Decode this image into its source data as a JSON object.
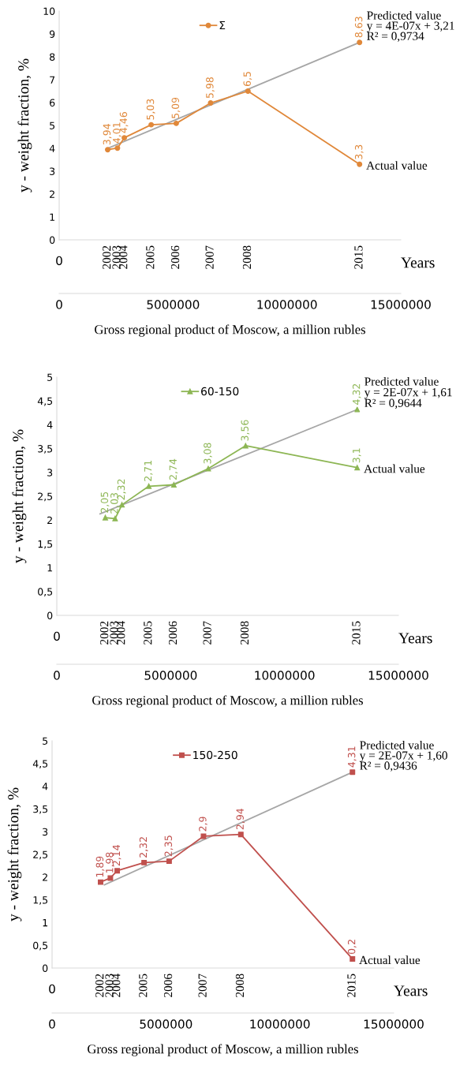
{
  "chart_data": [
    {
      "type": "line",
      "ylabel": "y - weight fraction, %",
      "xlabel": "Gross regional product of Moscow, a million rubles",
      "xlim": [
        0,
        15000000
      ],
      "xticks": [
        0,
        5000000,
        10000000,
        15000000
      ],
      "ylim": [
        0,
        10
      ],
      "yticks": [
        0,
        1,
        2,
        3,
        4,
        5,
        6,
        7,
        8,
        9,
        10
      ],
      "grid": false,
      "legend": "top",
      "series": [
        {
          "type": "line",
          "color": "#a6a6a6",
          "marker": "none",
          "x": [
            2130000,
            13190000
          ],
          "values": [
            4.0,
            8.63
          ]
        },
        {
          "name": "Σ",
          "color": "#e0883a",
          "marker": "circle",
          "x": [
            2130000,
            2560000,
            2860000,
            4040000,
            5140000,
            6650000,
            8290000,
            13190000
          ],
          "values": [
            3.94,
            4.01,
            4.46,
            5.03,
            5.09,
            5.98,
            6.5,
            3.3
          ],
          "value_labels": [
            "3,94",
            "4,01",
            "4,46",
            "5,03",
            "5,09",
            "5,98",
            "6,5",
            "3,3"
          ]
        },
        {
          "type": "scatter",
          "color": "#e0883a",
          "marker": "circle",
          "x": [
            13190000
          ],
          "values": [
            8.63
          ],
          "value_labels": [
            "8,63"
          ]
        }
      ],
      "annotations": [
        "Predicted value",
        "y = 4E-07x + 3,21",
        "R² = 0,9734",
        "Actual value",
        "0",
        "2002",
        "2003",
        "2004",
        "2005",
        "2006",
        "2007",
        "2008",
        "2015",
        "Years"
      ]
    },
    {
      "type": "line",
      "ylabel": "y - weight fraction, %",
      "xlabel": "Gross regional product of Moscow, a million rubles",
      "xlim": [
        0,
        15000000
      ],
      "xticks": [
        0,
        5000000,
        10000000,
        15000000
      ],
      "ylim": [
        0,
        5
      ],
      "yticks": [
        0,
        {
          "value": 0.5,
          "label": "0,5"
        },
        1,
        {
          "value": 1.5,
          "label": "1,5"
        },
        2,
        {
          "value": 2.5,
          "label": "2,5"
        },
        3,
        {
          "value": 3.5,
          "label": "3,5"
        },
        4,
        {
          "value": 4.5,
          "label": "4,5"
        },
        5
      ],
      "grid": false,
      "legend": "top",
      "series": [
        {
          "type": "line",
          "color": "#a6a6a6",
          "marker": "none",
          "x": [
            1900000,
            13190000
          ],
          "values": [
            2.13,
            4.32
          ]
        },
        {
          "name": "60-150",
          "color": "#8db654",
          "marker": "triangle",
          "x": [
            2130000,
            2560000,
            2860000,
            4040000,
            5140000,
            6650000,
            8290000,
            13190000
          ],
          "values": [
            2.05,
            2.03,
            2.32,
            2.71,
            2.74,
            3.08,
            3.56,
            3.1
          ],
          "value_labels": [
            "2,05",
            "2,03",
            "2,32",
            "2,71",
            "2,74",
            "3,08",
            "3,56",
            "3,1"
          ]
        },
        {
          "type": "scatter",
          "color": "#8db654",
          "marker": "triangle",
          "x": [
            13190000
          ],
          "values": [
            4.32
          ],
          "value_labels": [
            "4,32"
          ]
        }
      ],
      "annotations": [
        "Predicted value",
        "y = 2E-07x + 1,61",
        "R² = 0,9644",
        "Actual value",
        "0",
        "2002",
        "2003",
        "2004",
        "2005",
        "2006",
        "2007",
        "2008",
        "2015",
        "Years"
      ]
    },
    {
      "type": "line",
      "ylabel": "y - weight fraction, %",
      "xlabel": "Gross regional product of Moscow, a million rubles",
      "xlim": [
        0,
        15000000
      ],
      "xticks": [
        0,
        5000000,
        10000000,
        15000000
      ],
      "ylim": [
        0,
        5
      ],
      "yticks": [
        0,
        {
          "value": 0.5,
          "label": "0,5"
        },
        1,
        {
          "value": 1.5,
          "label": "1,5"
        },
        2,
        {
          "value": 2.5,
          "label": "2,5"
        },
        3,
        {
          "value": 3.5,
          "label": "3,5"
        },
        4,
        {
          "value": 4.5,
          "label": "4,5"
        },
        5
      ],
      "grid": false,
      "legend": "top",
      "series": [
        {
          "type": "line",
          "color": "#a6a6a6",
          "marker": "none",
          "x": [
            2300000,
            13190000
          ],
          "values": [
            1.83,
            4.31
          ]
        },
        {
          "name": "150-250",
          "color": "#c0504d",
          "marker": "square",
          "x": [
            2130000,
            2560000,
            2860000,
            4040000,
            5140000,
            6650000,
            8290000,
            13190000
          ],
          "values": [
            1.89,
            1.98,
            2.14,
            2.32,
            2.35,
            2.9,
            2.94,
            0.2
          ],
          "value_labels": [
            "1,89",
            "1,98",
            "2,14",
            "2,32",
            "2,35",
            "2,9",
            "2,94",
            "0,2"
          ]
        },
        {
          "type": "scatter",
          "color": "#c0504d",
          "marker": "square",
          "x": [
            13190000
          ],
          "values": [
            4.31
          ],
          "value_labels": [
            "4,31"
          ]
        }
      ],
      "annotations": [
        "Predicted value",
        "y = 2E-07x + 1,60",
        "R² = 0,9436",
        "Actual value",
        "0",
        "2002",
        "2003",
        "2004",
        "2005",
        "2006",
        "2007",
        "2008",
        "2015",
        "Years"
      ]
    }
  ]
}
